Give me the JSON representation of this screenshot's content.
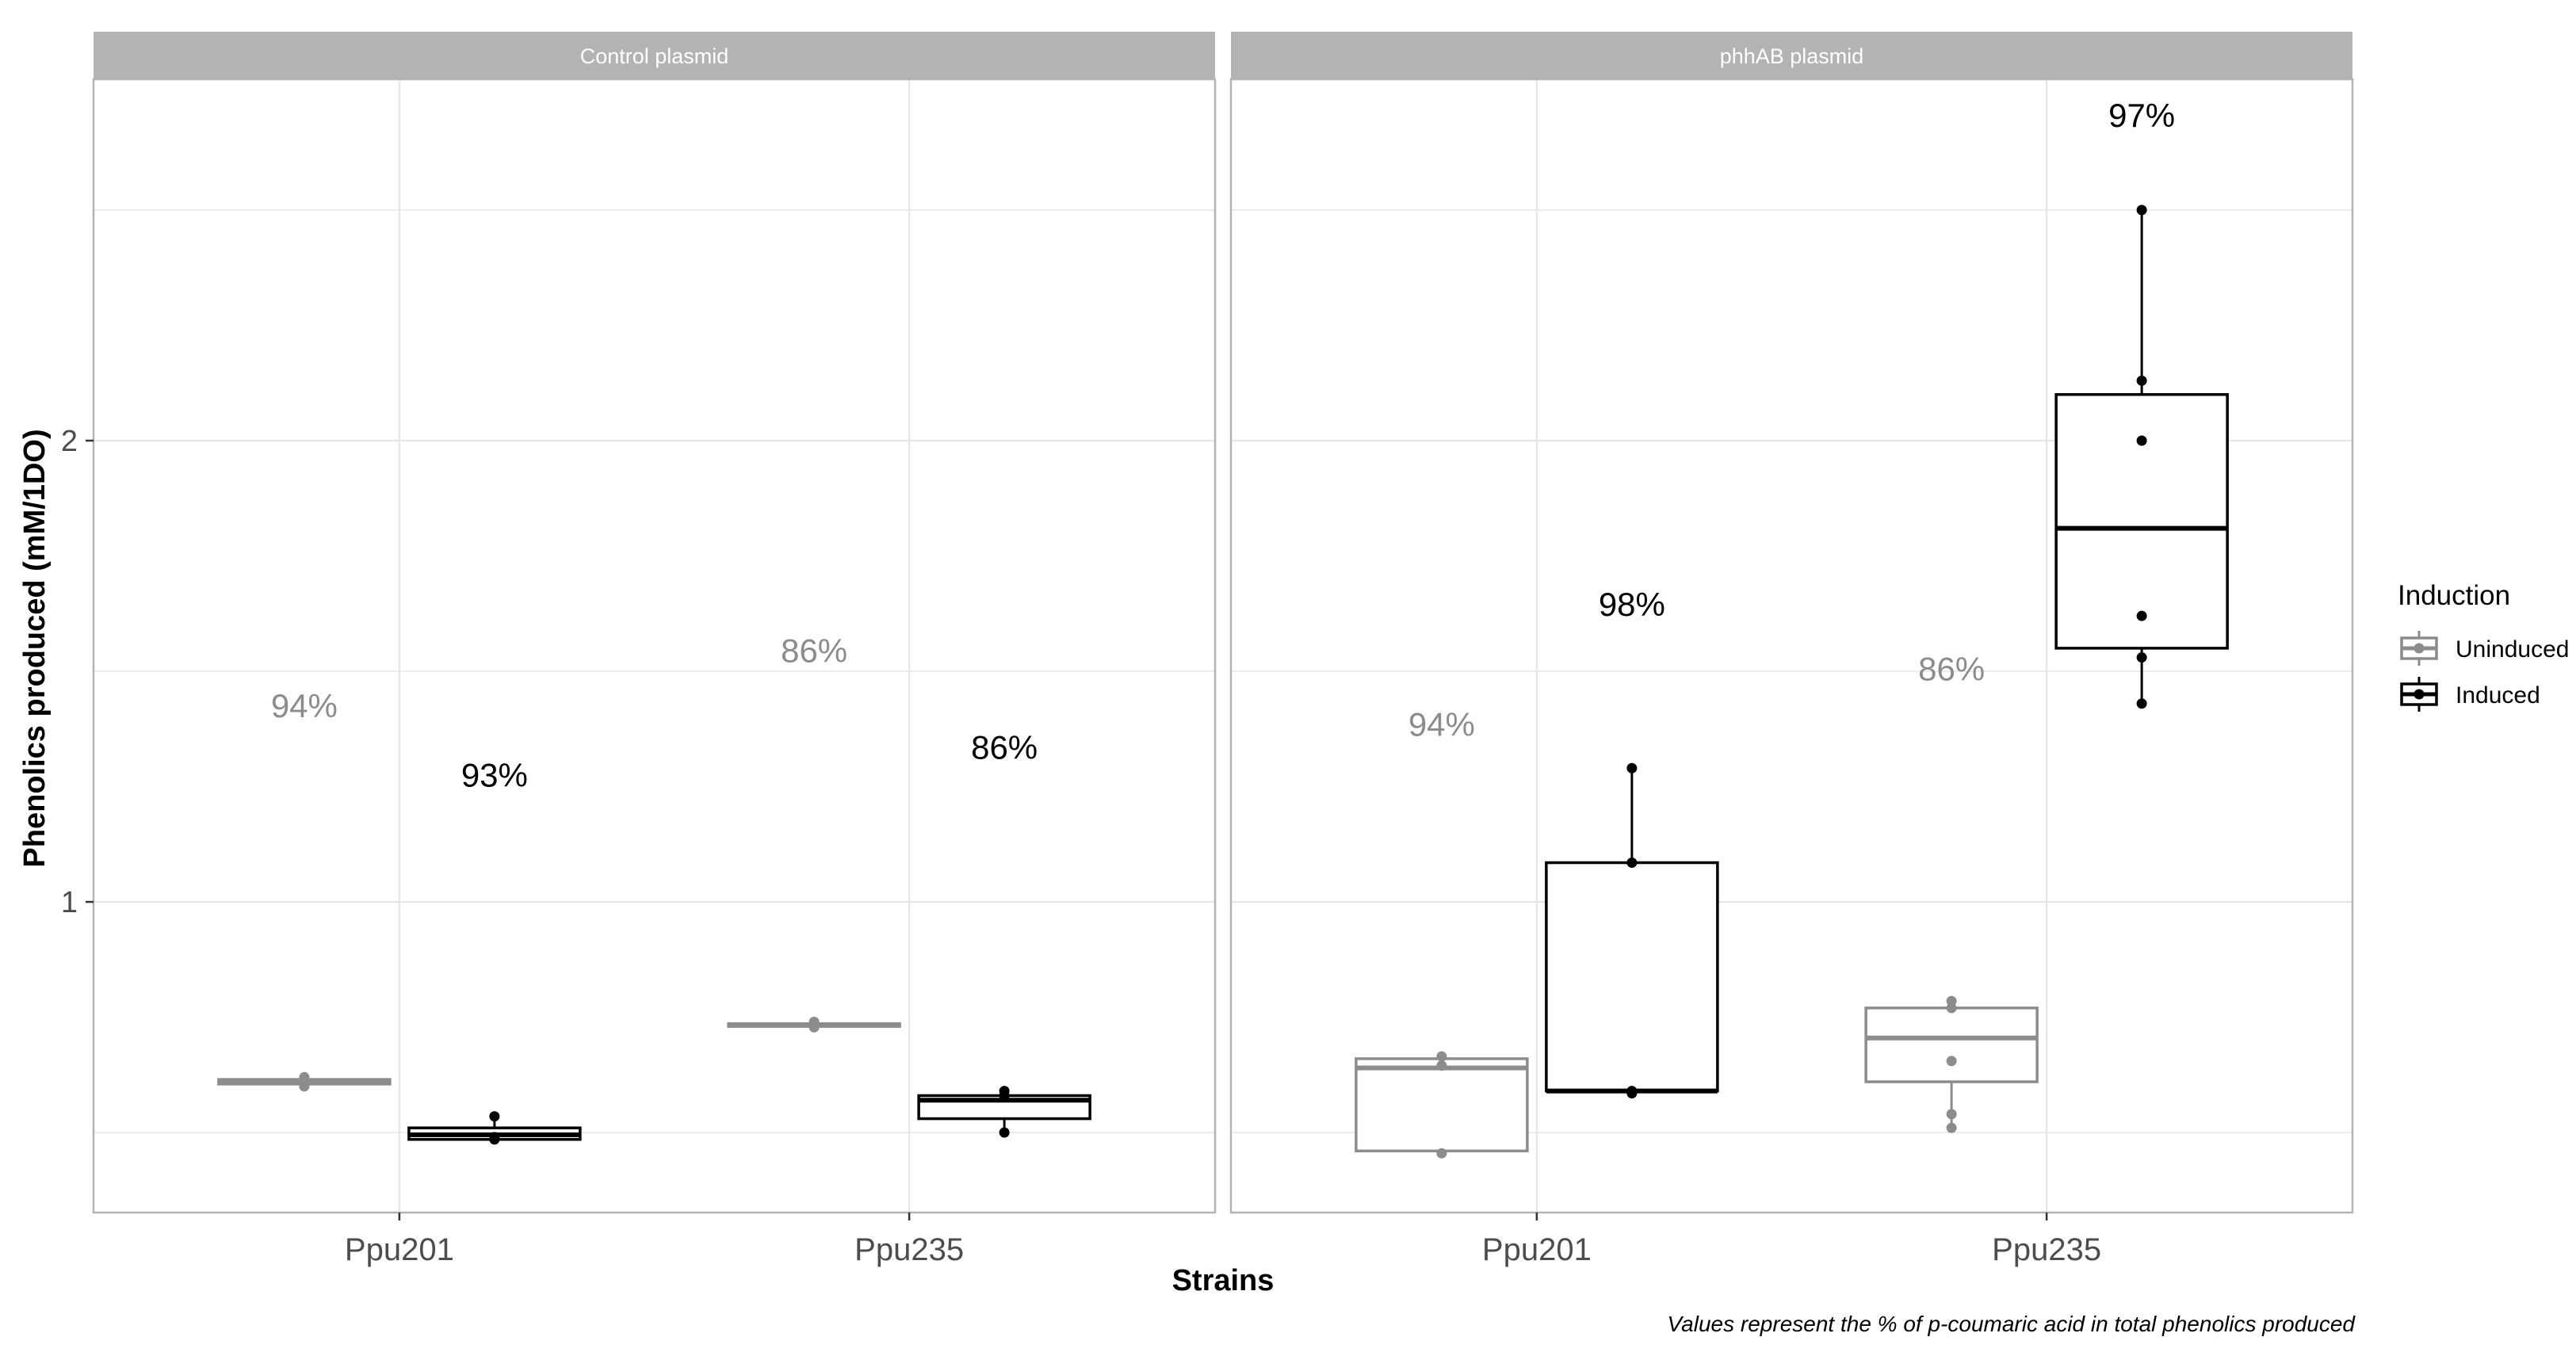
{
  "chart_data": {
    "type": "box",
    "ylabel": "Phenolics produced (mM/1DO)",
    "xlabel": "Strains",
    "caption": "Values represent the % of p-coumaric acid in total phenolics produced",
    "categories": [
      "Ppu201",
      "Ppu235"
    ],
    "y_ticks": [
      1,
      2
    ],
    "ylim": [
      0.33,
      2.78
    ],
    "grid": true,
    "legend": {
      "title": "Induction",
      "position": "right",
      "entries": [
        "Uninduced",
        "Induced"
      ]
    },
    "colors": {
      "Uninduced": "#8c8c8c",
      "Induced": "#000000",
      "strip": "#b3b3b3",
      "grid": "#e6e6e6"
    },
    "panels": [
      {
        "strip": "Control plasmid",
        "groups": [
          {
            "strain": "Ppu201",
            "induction": "Uninduced",
            "q1": 0.605,
            "median": 0.61,
            "q3": 0.615,
            "whisker_low": 0.595,
            "whisker_high": 0.625,
            "points": [
              0.6,
              0.61,
              0.62,
              0.605
            ],
            "label": "94%",
            "label_y": 1.4
          },
          {
            "strain": "Ppu201",
            "induction": "Induced",
            "q1": 0.485,
            "median": 0.495,
            "q3": 0.51,
            "whisker_low": 0.48,
            "whisker_high": 0.535,
            "points": [
              0.485,
              0.49,
              0.535
            ],
            "label": "93%",
            "label_y": 1.25
          },
          {
            "strain": "Ppu235",
            "induction": "Uninduced",
            "q1": 0.73,
            "median": 0.733,
            "q3": 0.736,
            "whisker_low": 0.728,
            "whisker_high": 0.74,
            "points": [
              0.728,
              0.735,
              0.74
            ],
            "label": "86%",
            "label_y": 1.52
          },
          {
            "strain": "Ppu235",
            "induction": "Induced",
            "q1": 0.53,
            "median": 0.57,
            "q3": 0.58,
            "whisker_low": 0.5,
            "whisker_high": 0.59,
            "points": [
              0.5,
              0.58,
              0.59
            ],
            "label": "86%",
            "label_y": 1.31
          }
        ]
      },
      {
        "strip": "phhAB plasmid",
        "groups": [
          {
            "strain": "Ppu201",
            "induction": "Uninduced",
            "q1": 0.46,
            "median": 0.64,
            "q3": 0.66,
            "whisker_low": 0.455,
            "whisker_high": 0.67,
            "points": [
              0.455,
              0.645,
              0.665
            ],
            "label": "94%",
            "label_y": 1.36
          },
          {
            "strain": "Ppu201",
            "induction": "Induced",
            "q1": 0.59,
            "median": 0.59,
            "q3": 1.085,
            "whisker_low": 0.585,
            "whisker_high": 1.29,
            "points": [
              0.585,
              0.59,
              1.085,
              1.29
            ],
            "label": "98%",
            "label_y": 1.62
          },
          {
            "strain": "Ppu235",
            "induction": "Uninduced",
            "q1": 0.61,
            "median": 0.705,
            "q3": 0.77,
            "whisker_low": 0.51,
            "whisker_high": 0.785,
            "points": [
              0.51,
              0.54,
              0.655,
              0.77,
              0.785
            ],
            "label": "86%",
            "label_y": 1.48
          },
          {
            "strain": "Ppu235",
            "induction": "Induced",
            "q1": 1.55,
            "median": 1.81,
            "q3": 2.1,
            "whisker_low": 1.43,
            "whisker_high": 2.5,
            "points": [
              1.43,
              1.53,
              1.62,
              2.0,
              2.13,
              2.5
            ],
            "label": "97%",
            "label_y": 2.68
          }
        ]
      }
    ]
  }
}
